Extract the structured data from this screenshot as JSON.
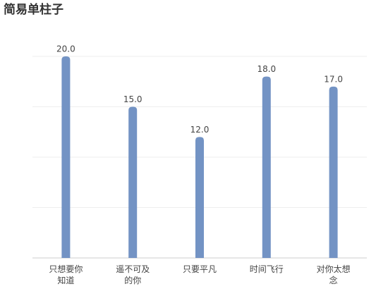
{
  "chart_data": {
    "type": "bar",
    "title": "简易单柱子",
    "categories": [
      "只想要你知道",
      "遥不可及的你",
      "只要平凡",
      "时间飞行",
      "对你太想念"
    ],
    "values": [
      20,
      15,
      12,
      18,
      17
    ],
    "value_labels": [
      "20.0",
      "15.0",
      "12.0",
      "18.0",
      "17.0"
    ],
    "color": "#7393c4",
    "ylim": [
      0,
      20
    ],
    "yticks": [
      0,
      5,
      10,
      15,
      20
    ],
    "grid": true
  }
}
